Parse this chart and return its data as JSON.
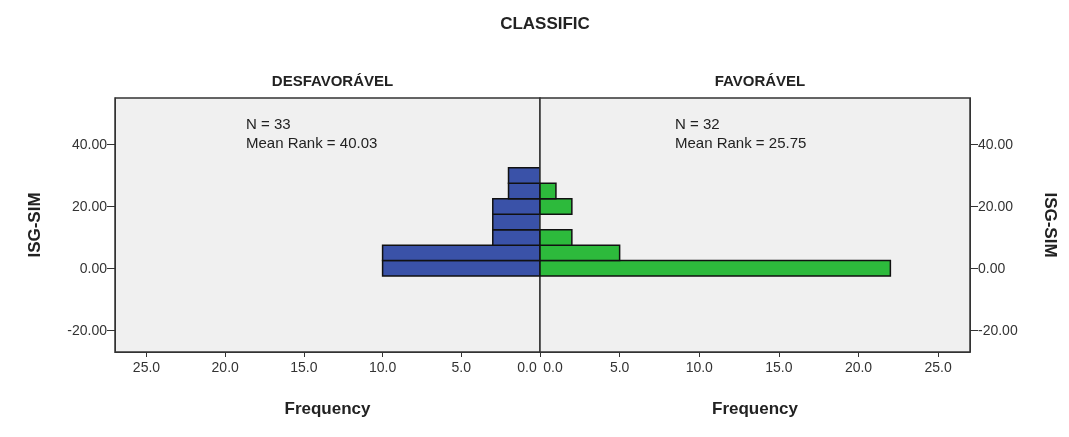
{
  "chart_data": [
    {
      "type": "histogram",
      "orientation": "horizontal",
      "title": "CLASSIFIC",
      "subtitle": "DESFAVORÁVEL",
      "xlabel": "Frequency",
      "ylabel": "ISG-SIM",
      "annotations": [
        "N = 33",
        "Mean Rank = 40.03"
      ],
      "bins": [
        -2.5,
        2.5,
        7.5,
        12.5,
        17.5,
        22.5,
        27.5,
        32.5
      ],
      "values": [
        10,
        10,
        3,
        3,
        3,
        2,
        2
      ],
      "color": "#3a52a8",
      "xlim": [
        27,
        0
      ],
      "xticks": [
        {
          "value": 25,
          "label": "25.0"
        },
        {
          "value": 20,
          "label": "20.0"
        },
        {
          "value": 15,
          "label": "15.0"
        },
        {
          "value": 10,
          "label": "10.0"
        },
        {
          "value": 5,
          "label": "5.0"
        },
        {
          "value": 0,
          "label": "0.0"
        }
      ],
      "ylim": [
        -27,
        55
      ],
      "yticks": [
        {
          "value": -20,
          "label": "-20.00"
        },
        {
          "value": 0,
          "label": "0.00"
        },
        {
          "value": 20,
          "label": "20.00"
        },
        {
          "value": 40,
          "label": "40.00"
        }
      ]
    },
    {
      "type": "histogram",
      "orientation": "horizontal",
      "subtitle": "FAVORÁVEL",
      "xlabel": "Frequency",
      "ylabel": "ISG-SIM",
      "annotations": [
        "N = 32",
        "Mean Rank = 25.75"
      ],
      "bins": [
        -2.5,
        2.5,
        7.5,
        12.5,
        17.5,
        22.5,
        27.5,
        32.5
      ],
      "values": [
        22,
        5,
        2,
        0,
        2,
        1,
        0
      ],
      "color": "#2dba3c",
      "xlim": [
        0,
        27
      ],
      "xticks": [
        {
          "value": 0,
          "label": "0.0"
        },
        {
          "value": 5,
          "label": "5.0"
        },
        {
          "value": 10,
          "label": "10.0"
        },
        {
          "value": 15,
          "label": "15.0"
        },
        {
          "value": 20,
          "label": "20.0"
        },
        {
          "value": 25,
          "label": "25.0"
        }
      ],
      "ylim": [
        -27,
        55
      ],
      "yticks": [
        {
          "value": -20,
          "label": "-20.00"
        },
        {
          "value": 0,
          "label": "0.00"
        },
        {
          "value": 20,
          "label": "20.00"
        },
        {
          "value": 40,
          "label": "40.00"
        }
      ]
    }
  ]
}
